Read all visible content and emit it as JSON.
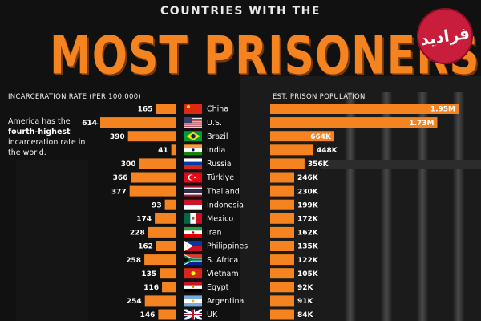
{
  "header": {
    "overline": "COUNTRIES WITH THE",
    "title": "MOST PRISONERS",
    "logo_text": "فرادید"
  },
  "columns": {
    "left_label": "INCARCERATION RATE (PER 100,000)",
    "right_label": "EST. PRISON POPULATION"
  },
  "annotation": {
    "line1": "America has the",
    "bold": "fourth-highest",
    "line2": "incarceration rate in the world."
  },
  "colors": {
    "accent": "#f58320",
    "background": "#0d0d0d",
    "label_dark": "#1a1a1a"
  },
  "chart_data": {
    "type": "bar",
    "categories": [
      "China",
      "U.S.",
      "Brazil",
      "India",
      "Russia",
      "Türkiye",
      "Thailand",
      "Indonesia",
      "Mexico",
      "Iran",
      "Philippines",
      "S. Africa",
      "Vietnam",
      "Egypt",
      "Argentina",
      "UK"
    ],
    "flags": [
      "china-flag-icon",
      "us-flag-icon",
      "brazil-flag-icon",
      "india-flag-icon",
      "russia-flag-icon",
      "turkiye-flag-icon",
      "thailand-flag-icon",
      "indonesia-flag-icon",
      "mexico-flag-icon",
      "iran-flag-icon",
      "philippines-flag-icon",
      "south-africa-flag-icon",
      "vietnam-flag-icon",
      "egypt-flag-icon",
      "argentina-flag-icon",
      "uk-flag-icon"
    ],
    "series": [
      {
        "name": "INCARCERATION RATE (PER 100,000)",
        "values": [
          165,
          614,
          390,
          41,
          300,
          366,
          377,
          93,
          174,
          228,
          162,
          258,
          135,
          116,
          254,
          146
        ],
        "labels": [
          "165",
          "614",
          "390",
          "41",
          "300",
          "366",
          "377",
          "93",
          "174",
          "228",
          "162",
          "258",
          "135",
          "116",
          "254",
          "146"
        ]
      },
      {
        "name": "EST. PRISON POPULATION",
        "values": [
          1950000,
          1730000,
          664000,
          448000,
          356000,
          246000,
          230000,
          199000,
          172000,
          162000,
          135000,
          122000,
          105000,
          92000,
          91000,
          84000
        ],
        "labels": [
          "1.95M",
          "1.73M",
          "664K",
          "448K",
          "356K",
          "246K",
          "230K",
          "199K",
          "172K",
          "162K",
          "135K",
          "122K",
          "105K",
          "92K",
          "91K",
          "84K"
        ]
      }
    ]
  }
}
